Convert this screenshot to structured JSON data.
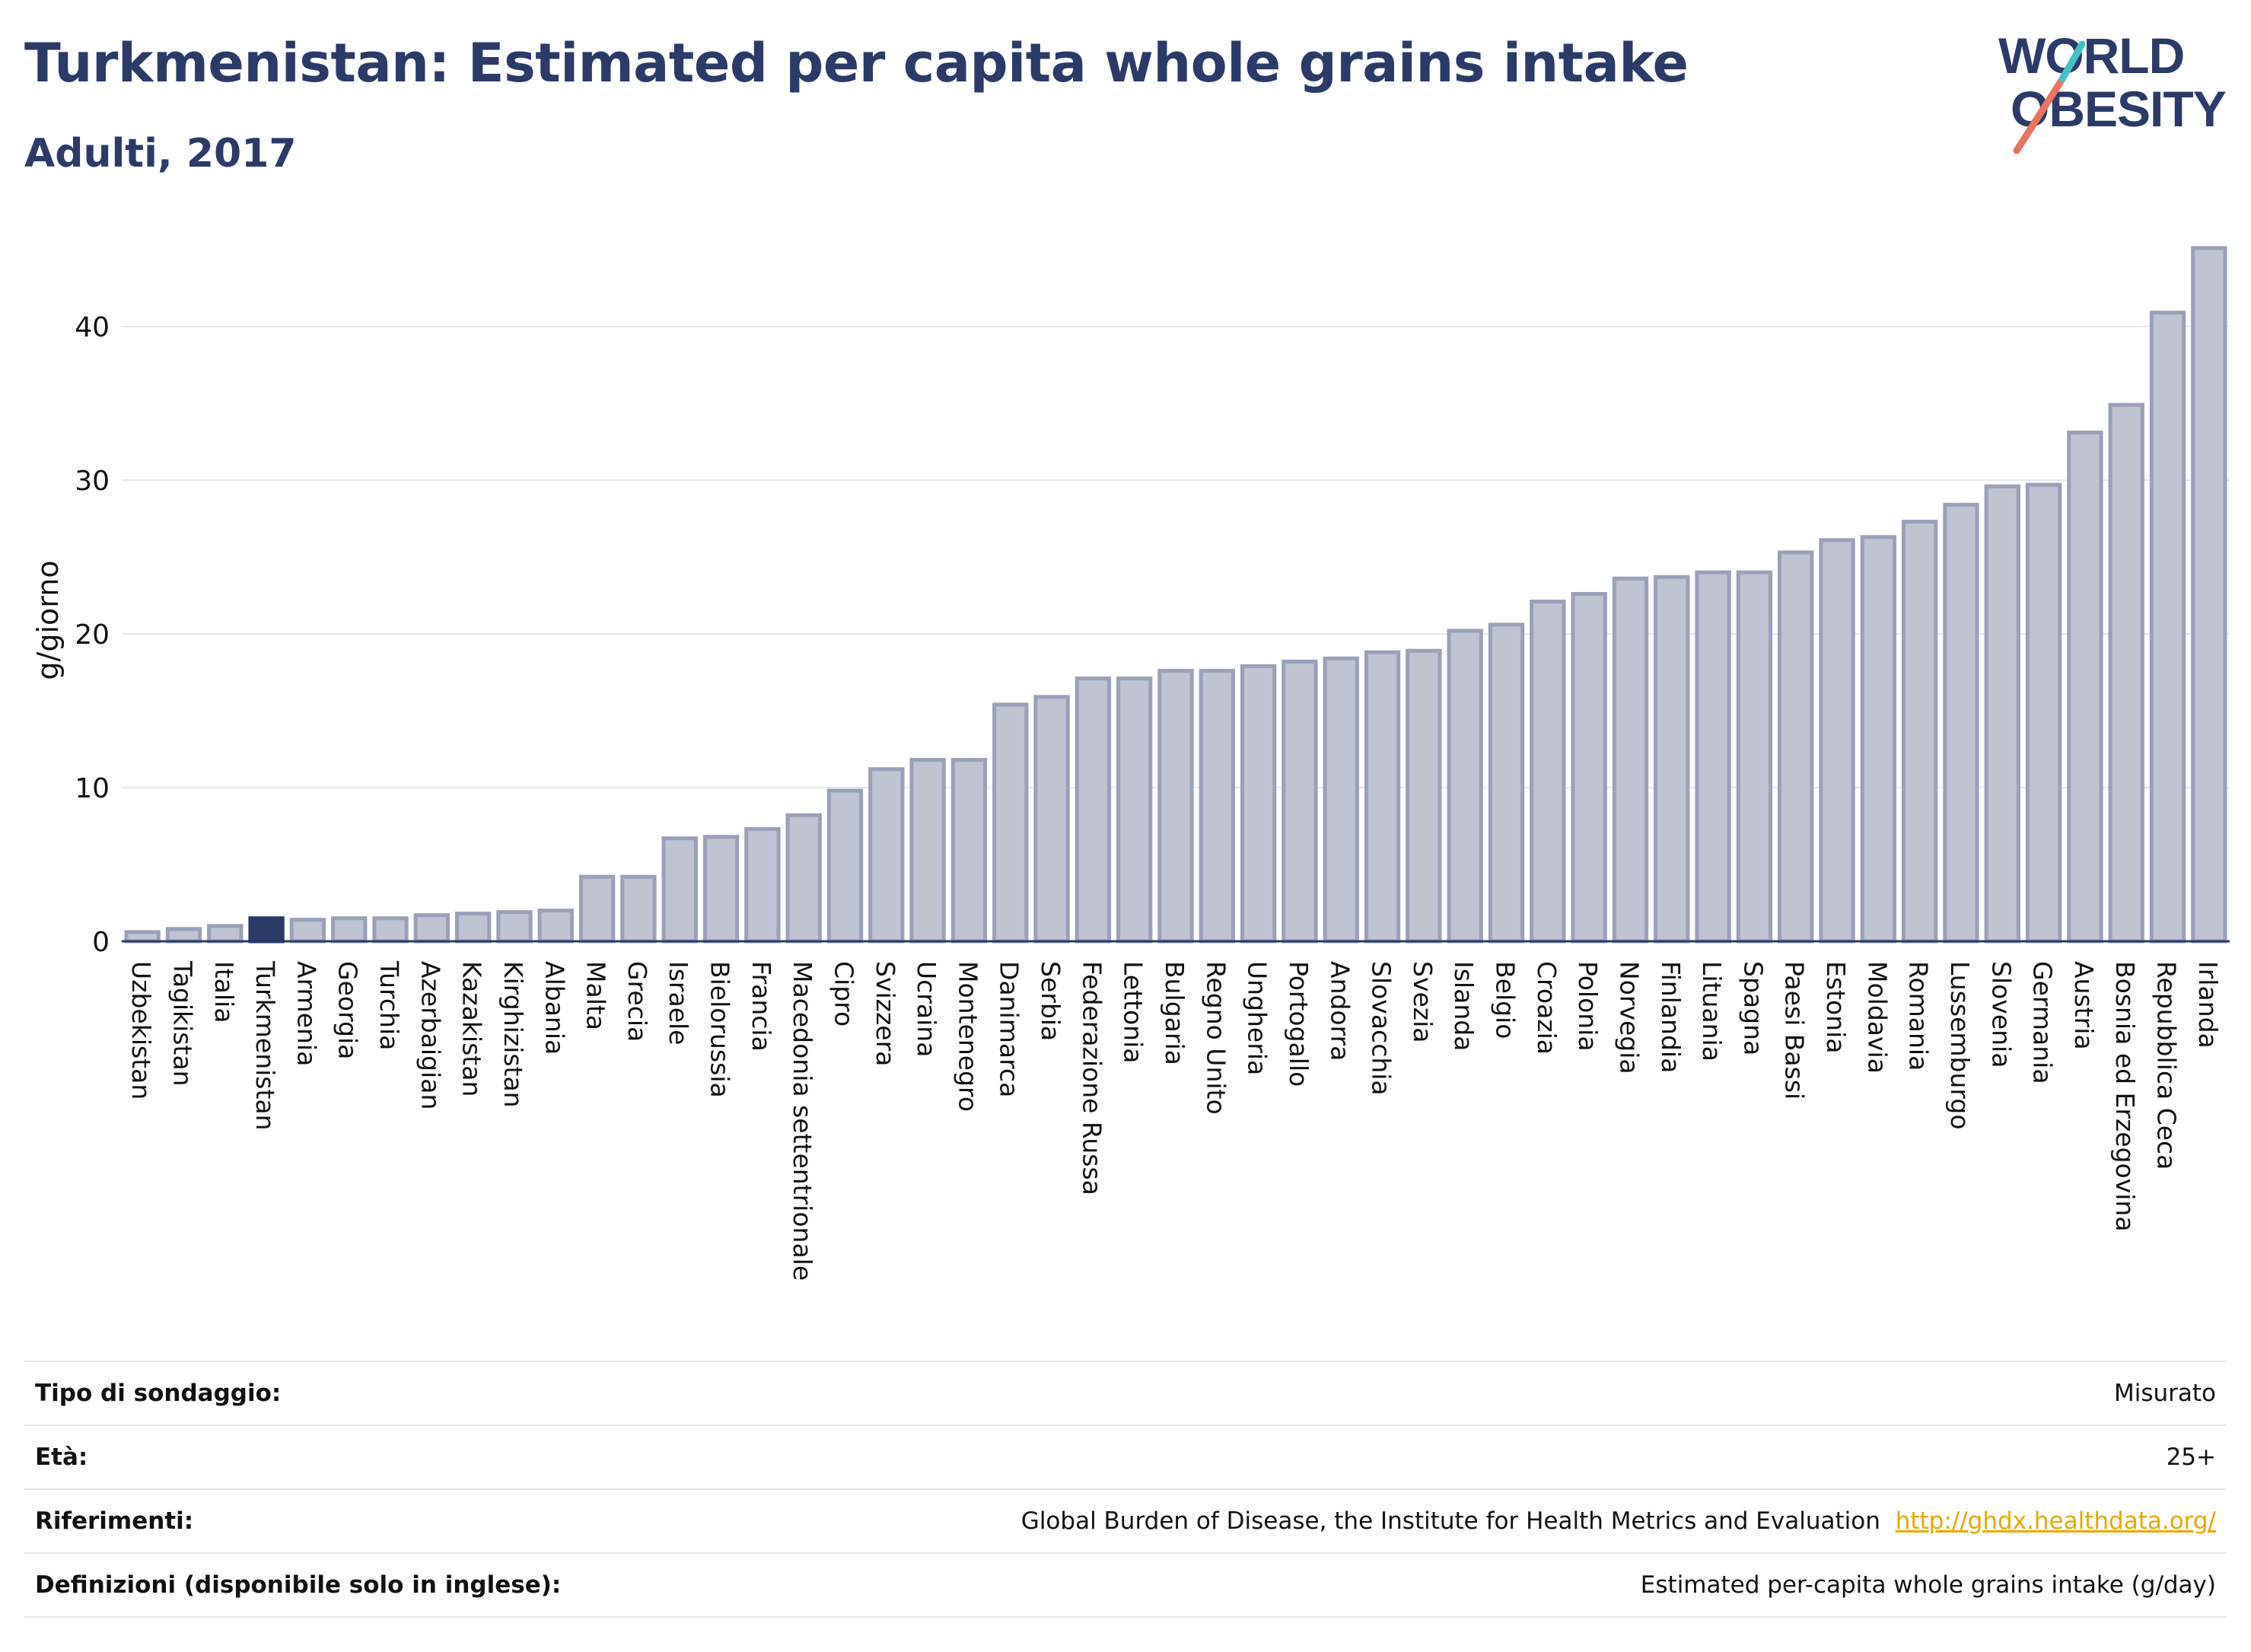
{
  "title": "Turkmenistan: Estimated per capita whole grains intake",
  "subtitle": "Adulti, 2017",
  "logo": {
    "line1": "WORLD",
    "line2": "OBESITY"
  },
  "colors": {
    "title": "#2b3a67",
    "highlight_bar": "#2b3a67",
    "bar_fill": "#bfc3d2",
    "bar_stroke": "#9aa0b8",
    "logo_red": "#e8745f",
    "logo_teal": "#45c1c5",
    "link": "#e8a800"
  },
  "info": {
    "rows": [
      {
        "label": "Tipo di sondaggio:",
        "value": "Misurato"
      },
      {
        "label": "Età:",
        "value": "25+"
      },
      {
        "label": "Riferimenti:",
        "value": "Global Burden of Disease, the Institute for Health Metrics and Evaluation",
        "link": "http://ghdx.healthdata.org/"
      },
      {
        "label": "Definizioni (disponibile solo in inglese):",
        "value": "Estimated per-capita whole grains intake (g/day)"
      }
    ]
  },
  "chart_data": {
    "type": "bar",
    "ylabel": "g/giorno",
    "ylim": [
      0,
      46
    ],
    "yticks": [
      0,
      10,
      20,
      30,
      40
    ],
    "grid": true,
    "highlight": "Turkmenistan",
    "categories": [
      "Uzbekistan",
      "Tagikistan",
      "Italia",
      "Turkmenistan",
      "Armenia",
      "Georgia",
      "Turchia",
      "Azerbaigian",
      "Kazakistan",
      "Kirghizistan",
      "Albania",
      "Malta",
      "Grecia",
      "Israele",
      "Bielorussia",
      "Francia",
      "Macedonia settentrionale",
      "Cipro",
      "Svizzera",
      "Ucraina",
      "Montenegro",
      "Danimarca",
      "Serbia",
      "Federazione Russa",
      "Lettonia",
      "Bulgaria",
      "Regno Unito",
      "Ungheria",
      "Portogallo",
      "Andorra",
      "Slovacchia",
      "Svezia",
      "Islanda",
      "Belgio",
      "Croazia",
      "Polonia",
      "Norvegia",
      "Finlandia",
      "Lituania",
      "Spagna",
      "Paesi Bassi",
      "Estonia",
      "Moldavia",
      "Romania",
      "Lussemburgo",
      "Slovenia",
      "Germania",
      "Austria",
      "Bosnia ed Erzegovina",
      "Repubblica Ceca",
      "Irlanda"
    ],
    "values": [
      0.6,
      0.8,
      1.0,
      1.5,
      1.4,
      1.5,
      1.5,
      1.7,
      1.8,
      1.9,
      2.0,
      4.2,
      4.2,
      6.7,
      6.8,
      7.3,
      8.2,
      9.8,
      11.2,
      11.8,
      11.8,
      15.4,
      15.9,
      17.1,
      17.1,
      17.6,
      17.6,
      17.9,
      18.2,
      18.4,
      18.8,
      18.9,
      20.2,
      20.6,
      22.1,
      22.6,
      23.6,
      23.7,
      24.0,
      24.0,
      25.3,
      26.1,
      26.3,
      27.3,
      28.4,
      29.6,
      29.7,
      33.1,
      34.9,
      40.9,
      45.1
    ]
  }
}
